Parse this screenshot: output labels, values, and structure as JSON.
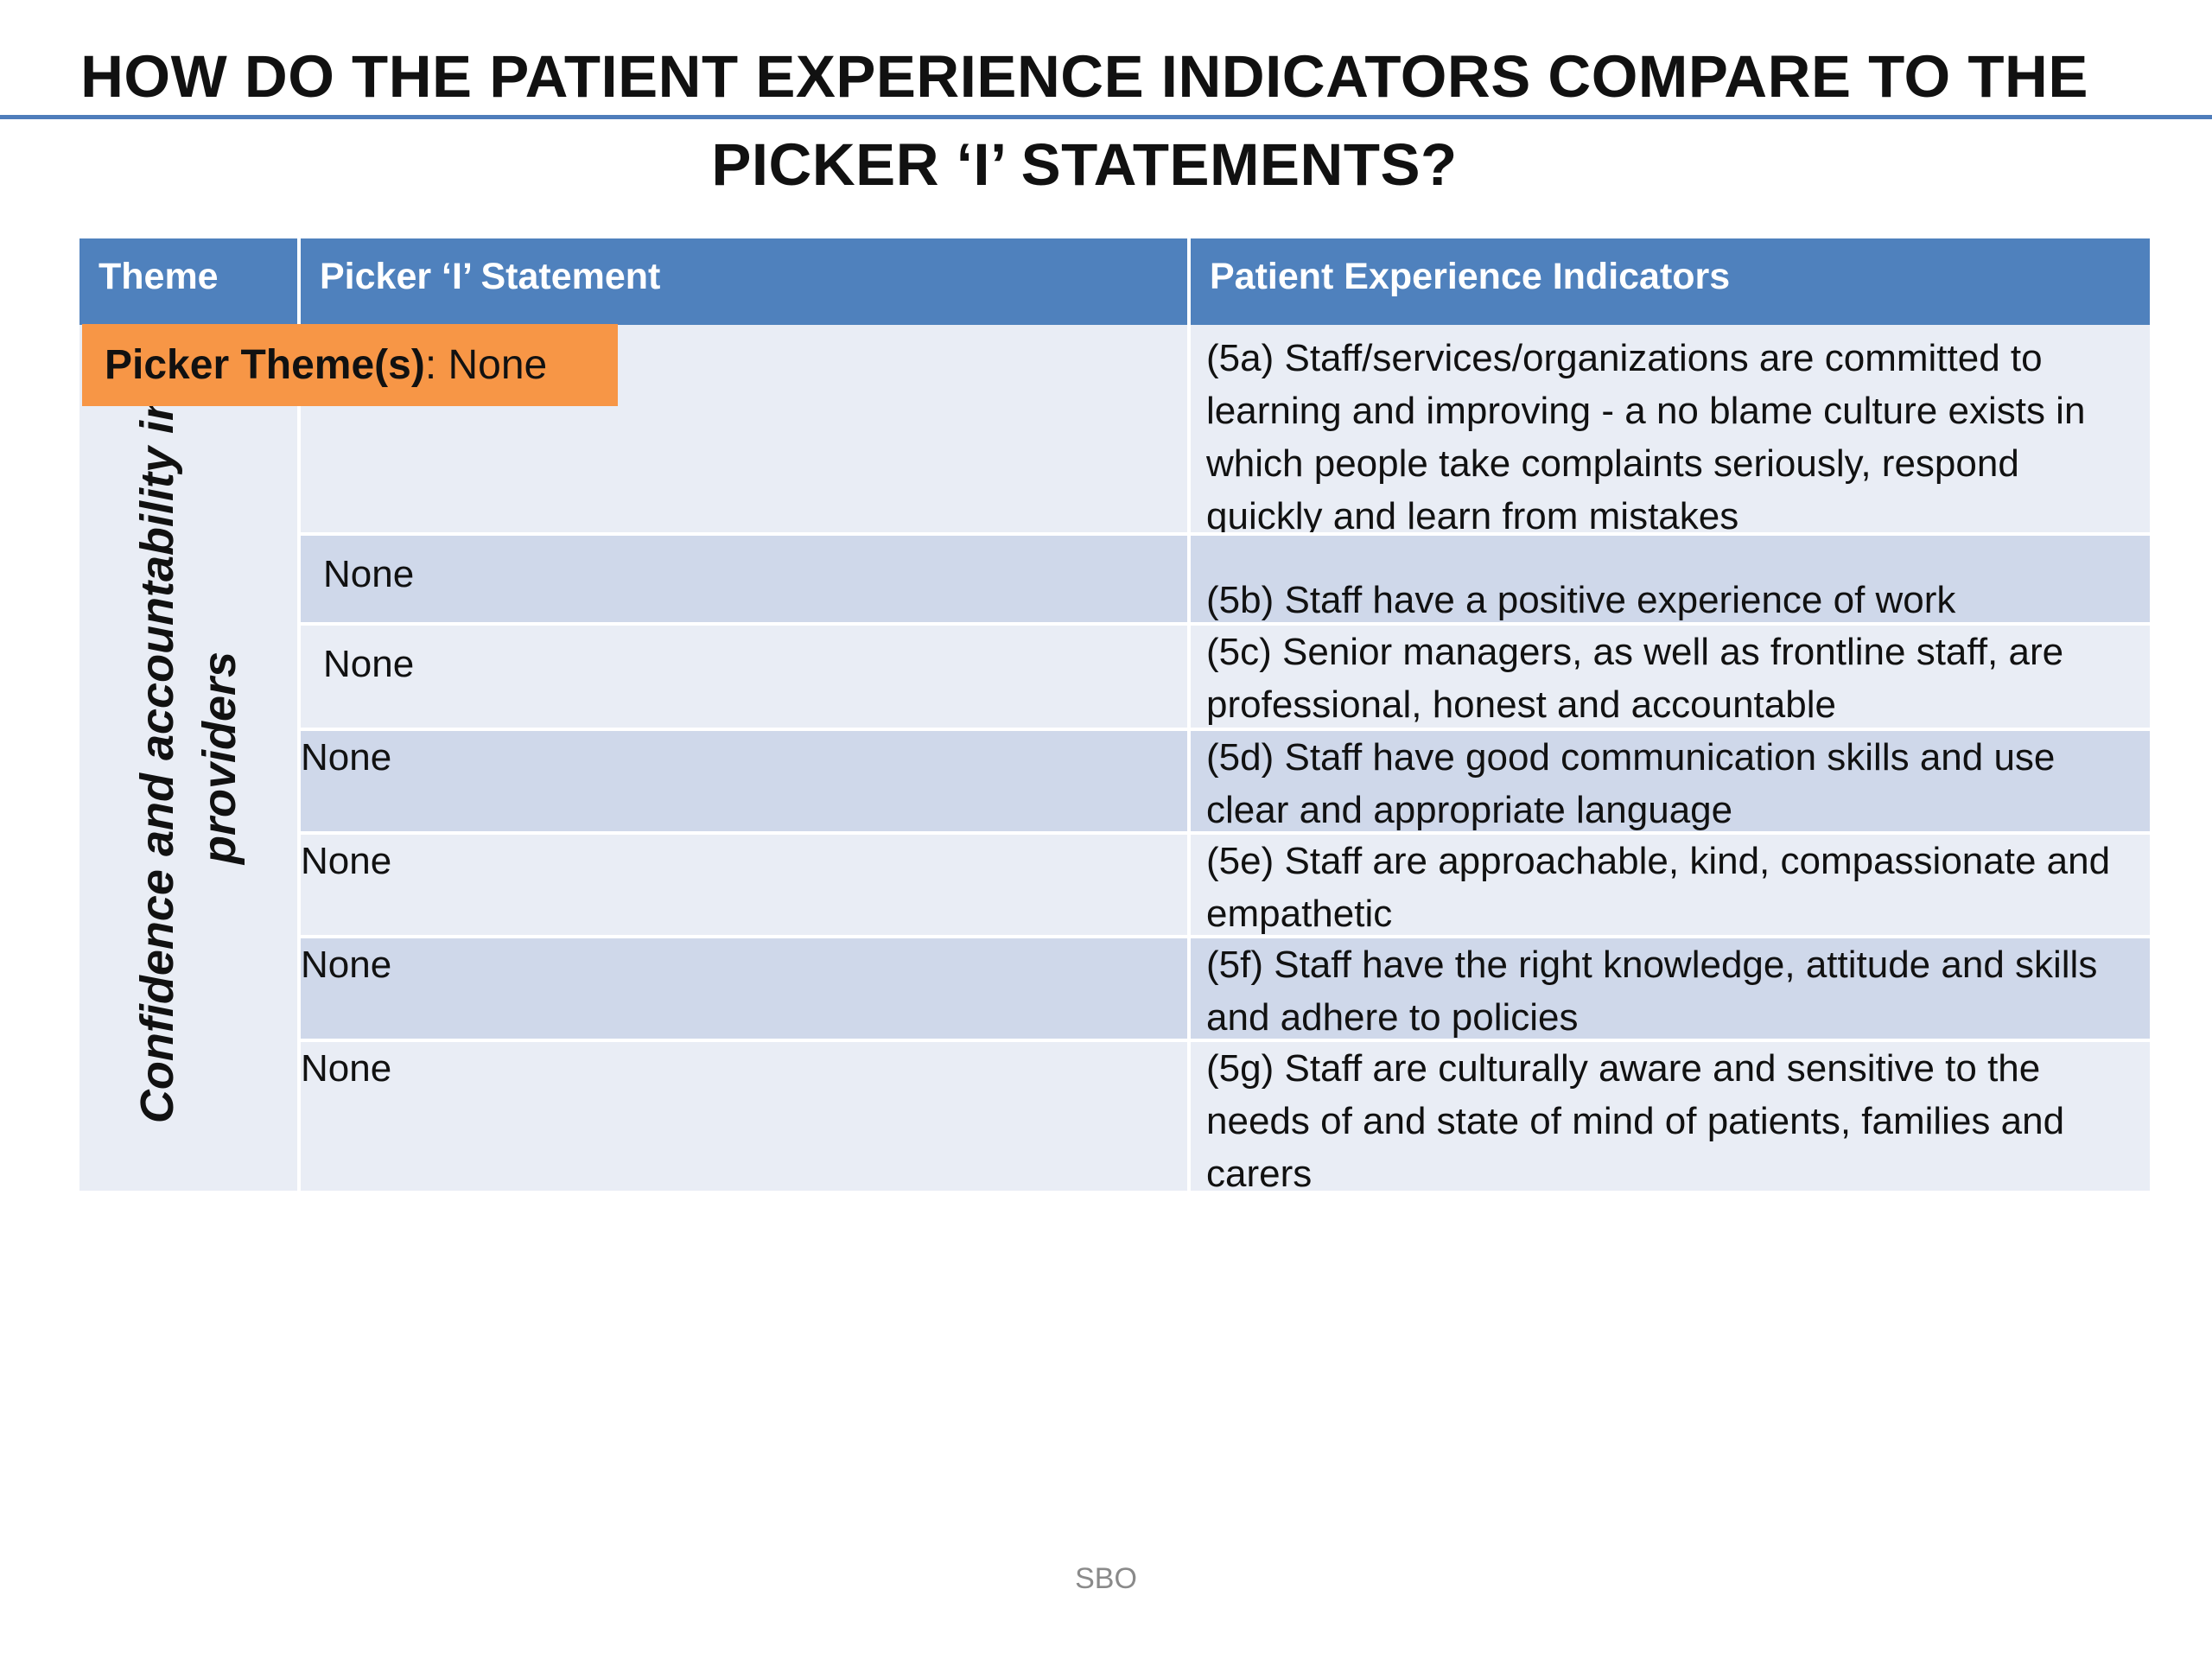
{
  "slide": {
    "title": "HOW DO THE PATIENT EXPERIENCE INDICATORS COMPARE TO THE PICKER ‘I’ STATEMENTS?",
    "footer": "SBO"
  },
  "table": {
    "headers": {
      "theme": "Theme",
      "picker": "Picker ‘I’ Statement",
      "indicators": "Patient Experience Indicators"
    },
    "theme_label": "Confidence and accountability in providers",
    "rows": [
      {
        "picker": "",
        "indicator": "(5a) Staff/services/organizations are committed to learning and improving - a no blame culture exists in which people take complaints seriously, respond quickly and learn from mistakes"
      },
      {
        "picker": "None",
        "indicator": "(5b) Staff have a positive experience of work"
      },
      {
        "picker": "None",
        "indicator": "(5c) Senior managers, as well as frontline staff, are professional, honest and accountable"
      },
      {
        "picker": "None",
        "indicator": "(5d) Staff have good communication skills and use clear and appropriate language"
      },
      {
        "picker": "None",
        "indicator": "(5e) Staff are approachable, kind, compassionate and empathetic"
      },
      {
        "picker": "None",
        "indicator": "(5f) Staff have the right knowledge, attitude and skills and adhere to policies"
      },
      {
        "picker": "None",
        "indicator": "(5g) Staff are culturally aware and sensitive to the needs of and state of mind of patients, families and carers"
      }
    ]
  },
  "picker_theme_box": {
    "label": "Picker Theme(s)",
    "value": ": None"
  },
  "colors": {
    "header": "#4f81bd",
    "row_light": "#e9edf5",
    "row_dark": "#cfd8ea",
    "badge": "#f79646",
    "title_rule": "#4f7dbb"
  }
}
